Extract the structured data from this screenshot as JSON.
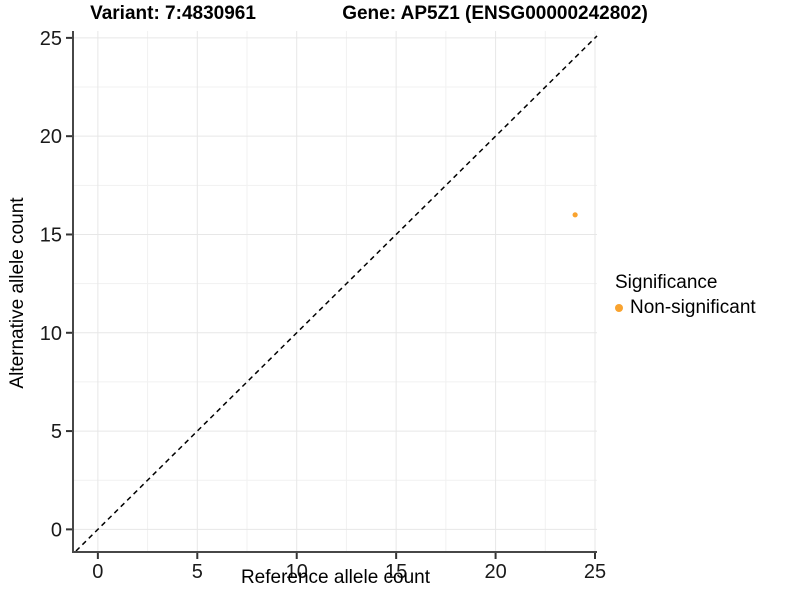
{
  "chart_data": {
    "type": "scatter",
    "title_left": "Variant: 7:4830961",
    "title_right": "Gene: AP5Z1 (ENSG00000242802)",
    "xlabel": "Reference allele count",
    "ylabel": "Alternative allele count",
    "xlim": [
      -1.2,
      25.1
    ],
    "ylim": [
      -1.1,
      25.35
    ],
    "xticks": [
      0,
      5,
      10,
      15,
      20,
      25
    ],
    "yticks": [
      0,
      5,
      10,
      15,
      20,
      25
    ],
    "minor_xticks": [
      2.5,
      7.5,
      12.5,
      17.5,
      22.5
    ],
    "minor_yticks": [
      2.5,
      7.5,
      12.5,
      17.5,
      22.5
    ],
    "grid": true,
    "background": "#ffffff",
    "series": [
      {
        "name": "Non-significant",
        "color": "#F9A32F",
        "points": [
          {
            "x": 24,
            "y": 16
          }
        ]
      }
    ],
    "reference_line": {
      "kind": "identity-diagonal",
      "equation": "y = x",
      "style": "dashed",
      "color": "#000000"
    },
    "legend": {
      "title": "Significance",
      "position": "right",
      "items": [
        {
          "label": "Non-significant",
          "color": "#F9A32F"
        }
      ]
    },
    "colors": {
      "axis_line": "#474747",
      "tick": "#333333",
      "tick_label": "#1a1a1a",
      "major_grid": "#e7e7e7",
      "minor_grid": "#f1f1f1"
    }
  }
}
